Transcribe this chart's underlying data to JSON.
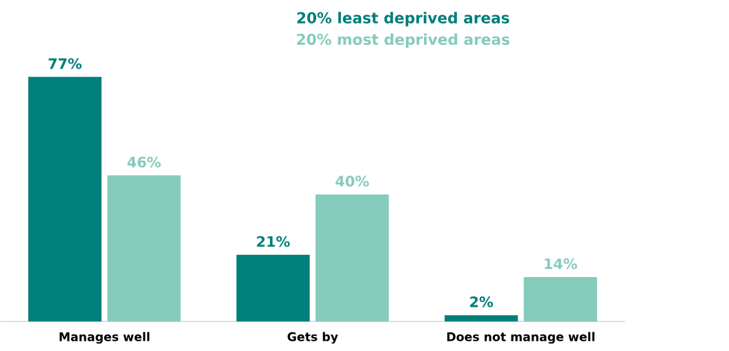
{
  "chart_data": {
    "type": "bar",
    "categories": [
      "Manages well",
      "Gets by",
      "Does not manage well"
    ],
    "series": [
      {
        "name": "20% least deprived areas",
        "color": "#007f7b",
        "values": [
          77,
          21,
          2
        ],
        "value_labels": [
          "77%",
          "21%",
          "2%"
        ]
      },
      {
        "name": "20% most deprived areas",
        "color": "#84cbbb",
        "values": [
          46,
          40,
          14
        ],
        "value_labels": [
          "46%",
          "40%",
          "14%"
        ]
      }
    ],
    "legend": "top"
  }
}
